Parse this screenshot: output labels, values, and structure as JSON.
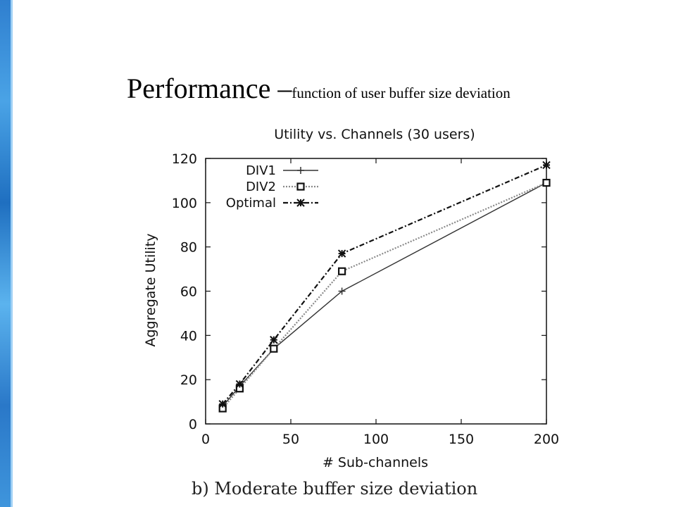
{
  "slide": {
    "title_main": "Performance –",
    "title_sub": "function of user buffer size deviation",
    "caption": "b) Moderate buffer size deviation"
  },
  "chart_data": {
    "type": "line",
    "title": "Utility vs. Channels (30 users)",
    "xlabel": "# Sub-channels",
    "ylabel": "Aggregate Utility",
    "xlim": [
      0,
      200
    ],
    "ylim": [
      0,
      120
    ],
    "x_ticks": [
      0,
      50,
      100,
      150,
      200
    ],
    "y_ticks": [
      0,
      20,
      40,
      60,
      80,
      100,
      120
    ],
    "grid": false,
    "legend_position": "top-left",
    "x": [
      10,
      20,
      40,
      80,
      200
    ],
    "series": [
      {
        "name": "DIV1",
        "values": [
          8,
          17,
          34,
          60,
          109
        ],
        "color": "#333333",
        "marker": "plus",
        "dash": "solid"
      },
      {
        "name": "DIV2",
        "values": [
          7,
          16,
          34,
          69,
          109
        ],
        "color": "#8a8a8a",
        "marker": "square",
        "dash": "dotted"
      },
      {
        "name": "Optimal",
        "values": [
          9,
          18,
          38,
          77,
          117
        ],
        "color": "#111111",
        "marker": "star",
        "dash": "dashdot"
      }
    ]
  }
}
